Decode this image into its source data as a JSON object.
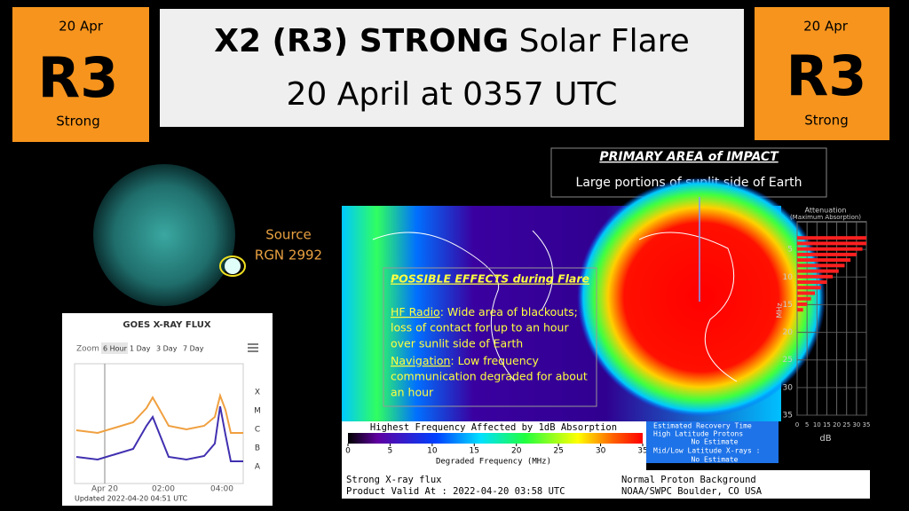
{
  "badge_left": {
    "date": "20 Apr",
    "scale": "R3",
    "level": "Strong"
  },
  "badge_right": {
    "date": "20 Apr",
    "scale": "R3",
    "level": "Strong"
  },
  "title": {
    "bold": "X2 (R3) STRONG",
    "rest": " Solar Flare",
    "line2": "20 April at 0357 UTC"
  },
  "source": {
    "label": "Source",
    "region": "RGN 2992"
  },
  "impact": {
    "heading": "PRIMARY AREA of IMPACT",
    "text": "Large portions of sunlit side of Earth"
  },
  "effects": {
    "heading": "POSSIBLE EFFECTS during Flare",
    "hf_radio": {
      "label": "HF Radio",
      "lines": [
        ": Wide area of blackouts;",
        "loss of contact for up to an hour",
        "over sunlit side of Earth"
      ]
    },
    "navigation": {
      "label": "Navigation",
      "lines": [
        ": Low frequency",
        "communication degraded for about",
        "an hour"
      ]
    }
  },
  "goes": {
    "title": "GOES X-RAY FLUX",
    "zoom": "Zoom",
    "buttons": [
      "6 Hour",
      "1 Day",
      "3 Day",
      "7 Day"
    ],
    "classes": [
      "X",
      "M",
      "C",
      "B",
      "A"
    ],
    "times": [
      "Apr 20",
      "02:00",
      "04:00"
    ],
    "updated": "Updated 2022-04-20 04:51 UTC"
  },
  "map": {
    "colorbar_title": "Highest Frequency Affected by 1dB Absorption",
    "colorbar_ticks": [
      0,
      5,
      10,
      15,
      20,
      25,
      30,
      35
    ],
    "colorbar_axis": "Degraded Frequency (MHz)",
    "recovery": [
      "Estimated Recovery Time",
      "High Latitude Protons",
      "No Estimate",
      "Mid/Low Latitude X-rays :",
      "No Estimate"
    ],
    "footer": [
      "Strong X-ray flux",
      "Product Valid At : 2022-04-20 03:58 UTC",
      "Normal Proton Background",
      "NOAA/SWPC Boulder, CO USA"
    ]
  },
  "attenuation": {
    "title": "Attenuation",
    "subtitle": "(Maximum Absorption)",
    "y_label": "MHz",
    "x_label": "dB",
    "yticks": [
      5,
      10,
      15,
      20,
      25,
      30,
      35
    ],
    "xticks": [
      0,
      5,
      10,
      15,
      20,
      25,
      30,
      35
    ],
    "mhz": [
      3,
      4,
      5,
      6,
      7,
      8,
      9,
      10,
      11,
      12,
      13,
      14,
      15,
      16
    ],
    "db": [
      35,
      35,
      33,
      30,
      27,
      24,
      21,
      18,
      15,
      12,
      9,
      7,
      5,
      3
    ]
  }
}
